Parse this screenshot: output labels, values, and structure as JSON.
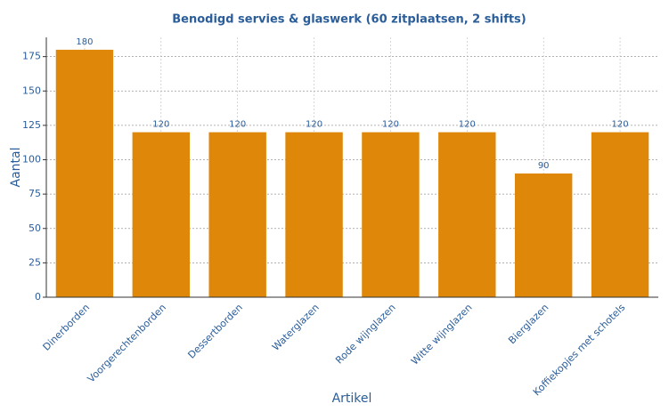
{
  "chart_data": {
    "type": "bar",
    "title": "Benodigd servies & glaswerk (60 zitplaatsen, 2 shifts)",
    "x_label": "Artikel",
    "y_label": "Aantal",
    "categories": [
      "Dinerborden",
      "Voorgerechtenborden",
      "Dessertborden",
      "Waterglazen",
      "Rode wijnglazen",
      "Witte wijnglazen",
      "Bierglazen",
      "Koffiekopjes met schotels"
    ],
    "values": [
      180,
      120,
      120,
      120,
      120,
      120,
      90,
      120
    ],
    "color": "#df8708",
    "ylim": [
      0,
      189
    ],
    "yticks": [
      0,
      25,
      50,
      75,
      100,
      125,
      150,
      175
    ],
    "grid": true
  }
}
